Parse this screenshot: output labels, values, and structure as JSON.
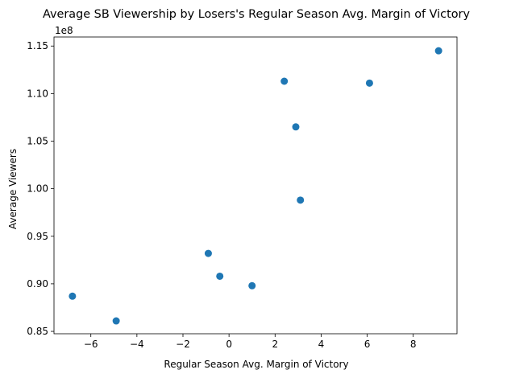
{
  "chart_data": {
    "type": "scatter",
    "title": "Average SB Viewership by Losers's Regular Season Avg. Margin of Victory",
    "xlabel": "Regular Season Avg. Margin of Victory",
    "ylabel": "Average Viewers",
    "y_offset_label": "1e8",
    "xlim": [
      -7.6,
      9.9
    ],
    "ylim": [
      0.8475,
      1.1595
    ],
    "x_ticks": [
      -6,
      -4,
      -2,
      0,
      2,
      4,
      6,
      8
    ],
    "x_tick_labels": [
      "−6",
      "−4",
      "−2",
      "0",
      "2",
      "4",
      "6",
      "8"
    ],
    "y_ticks": [
      0.85,
      0.9,
      0.95,
      1.0,
      1.05,
      1.1,
      1.15
    ],
    "y_tick_labels": [
      "0.85",
      "0.90",
      "0.95",
      "1.00",
      "1.05",
      "1.10",
      "1.15"
    ],
    "grid": false,
    "marker_color": "#1f77b4",
    "x": [
      -6.8,
      -4.9,
      -0.9,
      -0.4,
      1.0,
      2.4,
      2.9,
      3.1,
      6.1,
      9.1
    ],
    "y": [
      0.887,
      0.861,
      0.932,
      0.908,
      0.898,
      1.113,
      1.065,
      0.988,
      1.111,
      1.145
    ]
  }
}
